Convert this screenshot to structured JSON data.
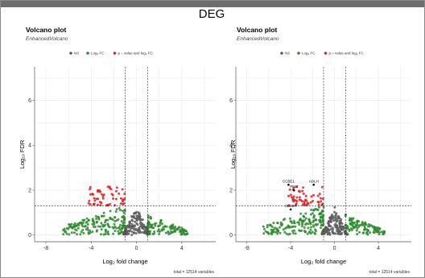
{
  "figure_title": "DEG",
  "colors": {
    "NS": "#5c5c5c",
    "Log2FC": "#2e8b2e",
    "p_and_log2FC": "#e02020"
  },
  "legend_labels": [
    "NS",
    "Log₂ FC",
    "p – value and log₂ FC"
  ],
  "chart_data": [
    {
      "type": "scatter",
      "title": "Volcano plot",
      "subtitle": "EnhancedVolcano",
      "xlabel": "Log₂ fold change",
      "ylabel": "Log₁₀ FDR",
      "xlim": [
        -9,
        7
      ],
      "ylim": [
        -0.3,
        7.5
      ],
      "xticks": [
        -8,
        -4,
        0,
        4
      ],
      "yticks": [
        0,
        2,
        4,
        6
      ],
      "fc_cutoff": [
        -1,
        1
      ],
      "p_cutoff": 1.3,
      "grid": true,
      "legend_position": "top",
      "caption": "total = 12514 variables",
      "point_labels": []
    },
    {
      "type": "scatter",
      "title": "Volcano plot",
      "subtitle": "EnhancedVolcano",
      "xlabel": "Log₂ fold change",
      "ylabel": "Log₁₀ FDR",
      "xlim": [
        -9,
        7
      ],
      "ylim": [
        -0.3,
        7.5
      ],
      "xticks": [
        -8,
        -4,
        0,
        4
      ],
      "yticks": [
        0,
        2,
        4,
        6
      ],
      "fc_cutoff": [
        -1,
        1
      ],
      "p_cutoff": 1.3,
      "grid": true,
      "legend_position": "top",
      "caption": "total = 12514 variables",
      "point_labels": [
        {
          "text": "CCBE1",
          "x": -4.2,
          "y": 2.35
        },
        {
          "text": "ADLH",
          "x": -1.9,
          "y": 2.35
        },
        {
          "text": "PNLI",
          "x": -3.7,
          "y": 2.1
        },
        {
          "text": "CD36R",
          "x": -4.0,
          "y": 1.25
        }
      ]
    }
  ]
}
